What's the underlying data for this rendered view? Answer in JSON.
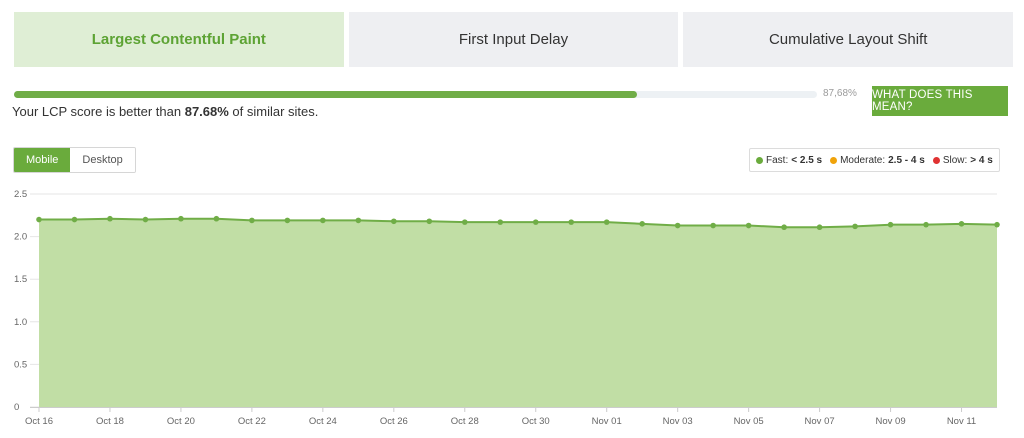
{
  "tabs": [
    {
      "label": "Largest Contentful Paint",
      "active": true
    },
    {
      "label": "First Input Delay",
      "active": false
    },
    {
      "label": "Cumulative Layout Shift",
      "active": false
    }
  ],
  "progress": {
    "value": 87.68,
    "label": "87,68%"
  },
  "info_button": {
    "label": "WHAT DOES THIS MEAN?"
  },
  "score": {
    "prefix": "Your LCP score is better than ",
    "value": "87.68%",
    "suffix": " of similar sites."
  },
  "device_toggle": {
    "mobile": "Mobile",
    "desktop": "Desktop",
    "selected": "Mobile"
  },
  "legend": {
    "fast": {
      "label": "Fast: ",
      "value": "< 2.5 s",
      "color": "#6aab3c"
    },
    "moderate": {
      "label": "Moderate: ",
      "value": "2.5 - 4 s",
      "color": "#f0a30a"
    },
    "slow": {
      "label": "Slow: ",
      "value": "> 4 s",
      "color": "#e03232"
    }
  },
  "chart_data": {
    "type": "area",
    "y_ticks": [
      "0",
      "0.5",
      "1.0",
      "1.5",
      "2.0",
      "2.5"
    ],
    "ylim": [
      0,
      2.5
    ],
    "x_tick_labels": [
      "Oct 16",
      "Oct 18",
      "Oct 20",
      "Oct 22",
      "Oct 24",
      "Oct 26",
      "Oct 28",
      "Oct 30",
      "Nov 01",
      "Nov 03",
      "Nov 05",
      "Nov 07",
      "Nov 09",
      "Nov 11"
    ],
    "x": [
      "Oct 16",
      "Oct 17",
      "Oct 18",
      "Oct 19",
      "Oct 20",
      "Oct 21",
      "Oct 22",
      "Oct 23",
      "Oct 24",
      "Oct 25",
      "Oct 26",
      "Oct 27",
      "Oct 28",
      "Oct 29",
      "Oct 30",
      "Oct 31",
      "Nov 01",
      "Nov 02",
      "Nov 03",
      "Nov 04",
      "Nov 05",
      "Nov 06",
      "Nov 07",
      "Nov 08",
      "Nov 09",
      "Nov 10",
      "Nov 11",
      "Nov 12"
    ],
    "values": [
      2.2,
      2.2,
      2.21,
      2.2,
      2.21,
      2.21,
      2.19,
      2.19,
      2.19,
      2.19,
      2.18,
      2.18,
      2.17,
      2.17,
      2.17,
      2.17,
      2.17,
      2.15,
      2.13,
      2.13,
      2.13,
      2.11,
      2.11,
      2.12,
      2.14,
      2.14,
      2.15,
      2.14
    ],
    "colors": {
      "line": "#70ad47",
      "fill": "#c1dea5",
      "grid": "#e6e6e6"
    },
    "grid": true
  }
}
